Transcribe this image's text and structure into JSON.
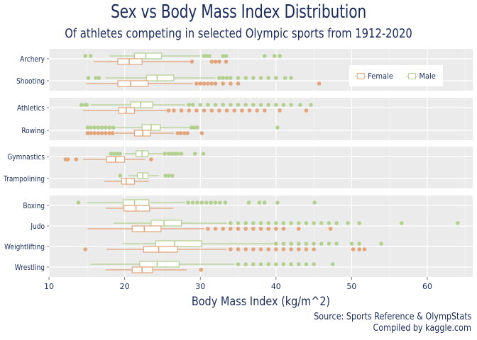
{
  "title": "Sex vs Body Mass Index Distribution",
  "subtitle": "Of athletes competing in selected Olympic sports from 1912-2020",
  "caption_line1": "Source: Sports Reference & OlympStats",
  "caption_line2": "Compiled by kaggle.com",
  "colors": {
    "female": "#e3a47a",
    "male": "#b3d08e",
    "panel": "#ebebeb",
    "text": "#1b2c5c"
  },
  "chart_data": {
    "type": "boxplot",
    "orientation": "horizontal",
    "xlabel": "Body Mass Index (kg/m^2)",
    "xlim": [
      10,
      66
    ],
    "xticks": [
      10,
      20,
      30,
      40,
      50,
      60
    ],
    "legend": {
      "position": "top-right",
      "entries": [
        "Female",
        "Male"
      ]
    },
    "panels": [
      {
        "sports": [
          {
            "name": "Archery",
            "male": {
              "whisker_low": 18,
              "q1": 21.3,
              "median": 22.8,
              "q3": 24.9,
              "whisker_high": 30,
              "outliers": [
                14.8,
                15.5,
                30.5,
                30.8,
                31.2,
                33,
                33.4,
                38.5,
                39.8,
                40.5
              ]
            },
            "female": {
              "whisker_low": 15.9,
              "q1": 19.1,
              "median": 20.6,
              "q3": 22.3,
              "whisker_high": 28.7,
              "outliers": [
                28.9,
                31.5,
                32,
                32.5,
                33.4
              ]
            }
          },
          {
            "name": "Shooting",
            "male": {
              "whisker_low": 17.5,
              "q1": 22.9,
              "median": 24.3,
              "q3": 26.5,
              "whisker_high": 32,
              "outliers": [
                15.2,
                16.2,
                16.6,
                32.5,
                33,
                33.5,
                34,
                35,
                36,
                37,
                38,
                39,
                40,
                41.2,
                42
              ]
            },
            "female": {
              "whisker_low": 14.9,
              "q1": 19.1,
              "median": 20.8,
              "q3": 23.1,
              "whisker_high": 29,
              "outliers": [
                29.5,
                30,
                30.5,
                31,
                31.5,
                32,
                33,
                34,
                35,
                45.7
              ]
            }
          }
        ]
      },
      {
        "sports": [
          {
            "name": "Athletics",
            "male": {
              "whisker_low": 15.5,
              "q1": 20.8,
              "median": 22.1,
              "q3": 23.7,
              "whisker_high": 28,
              "outliers": [
                14.3,
                14.8,
                15,
                28.5,
                29,
                30,
                31,
                32,
                33,
                34,
                35,
                36,
                37,
                38,
                39,
                40,
                41,
                42,
                43.2,
                44.6
              ]
            },
            "female": {
              "whisker_low": 14.5,
              "q1": 19.2,
              "median": 20.2,
              "q3": 21.3,
              "whisker_high": 25.5,
              "outliers": [
                25.8,
                26.5,
                27.5,
                28.5,
                29.5,
                30.5,
                31.5,
                32.5,
                33.5,
                34.5,
                35.5,
                36.5,
                37.5,
                38.5,
                40.5,
                44
              ]
            }
          },
          {
            "name": "Rowing",
            "male": {
              "whisker_low": 18.8,
              "q1": 22.3,
              "median": 23.5,
              "q3": 24.7,
              "whisker_high": 28.5,
              "outliers": [
                15.1,
                15.5,
                16,
                16.5,
                17,
                17.5,
                18,
                18.5,
                28.8,
                29.2,
                29.6,
                40.2
              ]
            },
            "female": {
              "whisker_low": 18.7,
              "q1": 21.3,
              "median": 22.4,
              "q3": 23.4,
              "whisker_high": 26.5,
              "outliers": [
                15.1,
                15.5,
                16,
                16.5,
                17,
                17.5,
                18,
                18.4,
                27,
                27.4,
                27.9,
                28.3,
                30.2
              ]
            }
          }
        ]
      },
      {
        "sports": [
          {
            "name": "Gymnastics",
            "male": {
              "whisker_low": 20,
              "q1": 21.5,
              "median": 22.3,
              "q3": 23.1,
              "whisker_high": 25,
              "outliers": [
                18.2,
                18.6,
                19,
                19.4,
                25.3,
                25.8,
                26.2,
                26.6,
                27,
                27.5,
                29.3,
                30.4
              ]
            },
            "female": {
              "whisker_low": 14.5,
              "q1": 17.6,
              "median": 18.8,
              "q3": 20,
              "whisker_high": 22.7,
              "outliers": [
                12.2,
                12.5,
                13.6,
                23.5
              ]
            }
          },
          {
            "name": "Trampolining",
            "male": {
              "whisker_low": 20.5,
              "q1": 21.7,
              "median": 22.4,
              "q3": 23.1,
              "whisker_high": 24.5,
              "outliers": [
                19.4,
                25.4,
                25.8,
                26.3
              ]
            },
            "female": {
              "whisker_low": 17.3,
              "q1": 19.6,
              "median": 20.2,
              "q3": 21.3,
              "whisker_high": 23.2,
              "outliers": []
            }
          }
        ]
      },
      {
        "sports": [
          {
            "name": "Boxing",
            "male": {
              "whisker_low": 15,
              "q1": 19.8,
              "median": 21.3,
              "q3": 23.2,
              "whisker_high": 28,
              "outliers": [
                13.9,
                28.4,
                29,
                29.6,
                30.2,
                30.8,
                31.4,
                32,
                32.6,
                33.3,
                36.4,
                37.8,
                38.5,
                40.2,
                45.1
              ]
            },
            "female": {
              "whisker_low": 17.5,
              "q1": 19.9,
              "median": 21.5,
              "q3": 23.3,
              "whisker_high": 26.4,
              "outliers": []
            }
          },
          {
            "name": "Judo",
            "male": {
              "whisker_low": 18.5,
              "q1": 23.5,
              "median": 25.2,
              "q3": 27.5,
              "whisker_high": 33.5,
              "outliers": [
                34,
                35,
                36,
                37,
                38,
                39,
                40,
                41,
                42,
                43,
                44,
                45,
                46,
                47,
                48,
                49.5,
                51,
                56.6,
                64
              ]
            },
            "female": {
              "whisker_low": 15.1,
              "q1": 21,
              "median": 22.6,
              "q3": 24.8,
              "whisker_high": 30.5,
              "outliers": [
                31,
                32,
                33,
                34,
                35,
                36,
                37,
                38,
                39,
                40,
                41,
                43,
                47.2
              ]
            }
          },
          {
            "name": "Weightlifting",
            "male": {
              "whisker_low": 19.7,
              "q1": 24.1,
              "median": 26.6,
              "q3": 30.2,
              "whisker_high": 39.8,
              "outliers": [
                40,
                41,
                42,
                43,
                44,
                45,
                46,
                47,
                48,
                50,
                51,
                53.9
              ]
            },
            "female": {
              "whisker_low": 17.6,
              "q1": 22.5,
              "median": 24.5,
              "q3": 27,
              "whisker_high": 33.5,
              "outliers": [
                14.8,
                34,
                35,
                36,
                37,
                38,
                39,
                40,
                41,
                42,
                43,
                44,
                45,
                50.2,
                51,
                51.7
              ]
            }
          },
          {
            "name": "Wrestling",
            "male": {
              "whisker_low": 15.5,
              "q1": 22,
              "median": 24.3,
              "q3": 27.2,
              "whisker_high": 34.5,
              "outliers": [
                35,
                36,
                37,
                38,
                39,
                40,
                41,
                42,
                43,
                44,
                45,
                47.5
              ]
            },
            "female": {
              "whisker_low": 17.5,
              "q1": 21,
              "median": 22.3,
              "q3": 23.7,
              "whisker_high": 28.2,
              "outliers": [
                30.1
              ]
            }
          }
        ]
      }
    ]
  }
}
